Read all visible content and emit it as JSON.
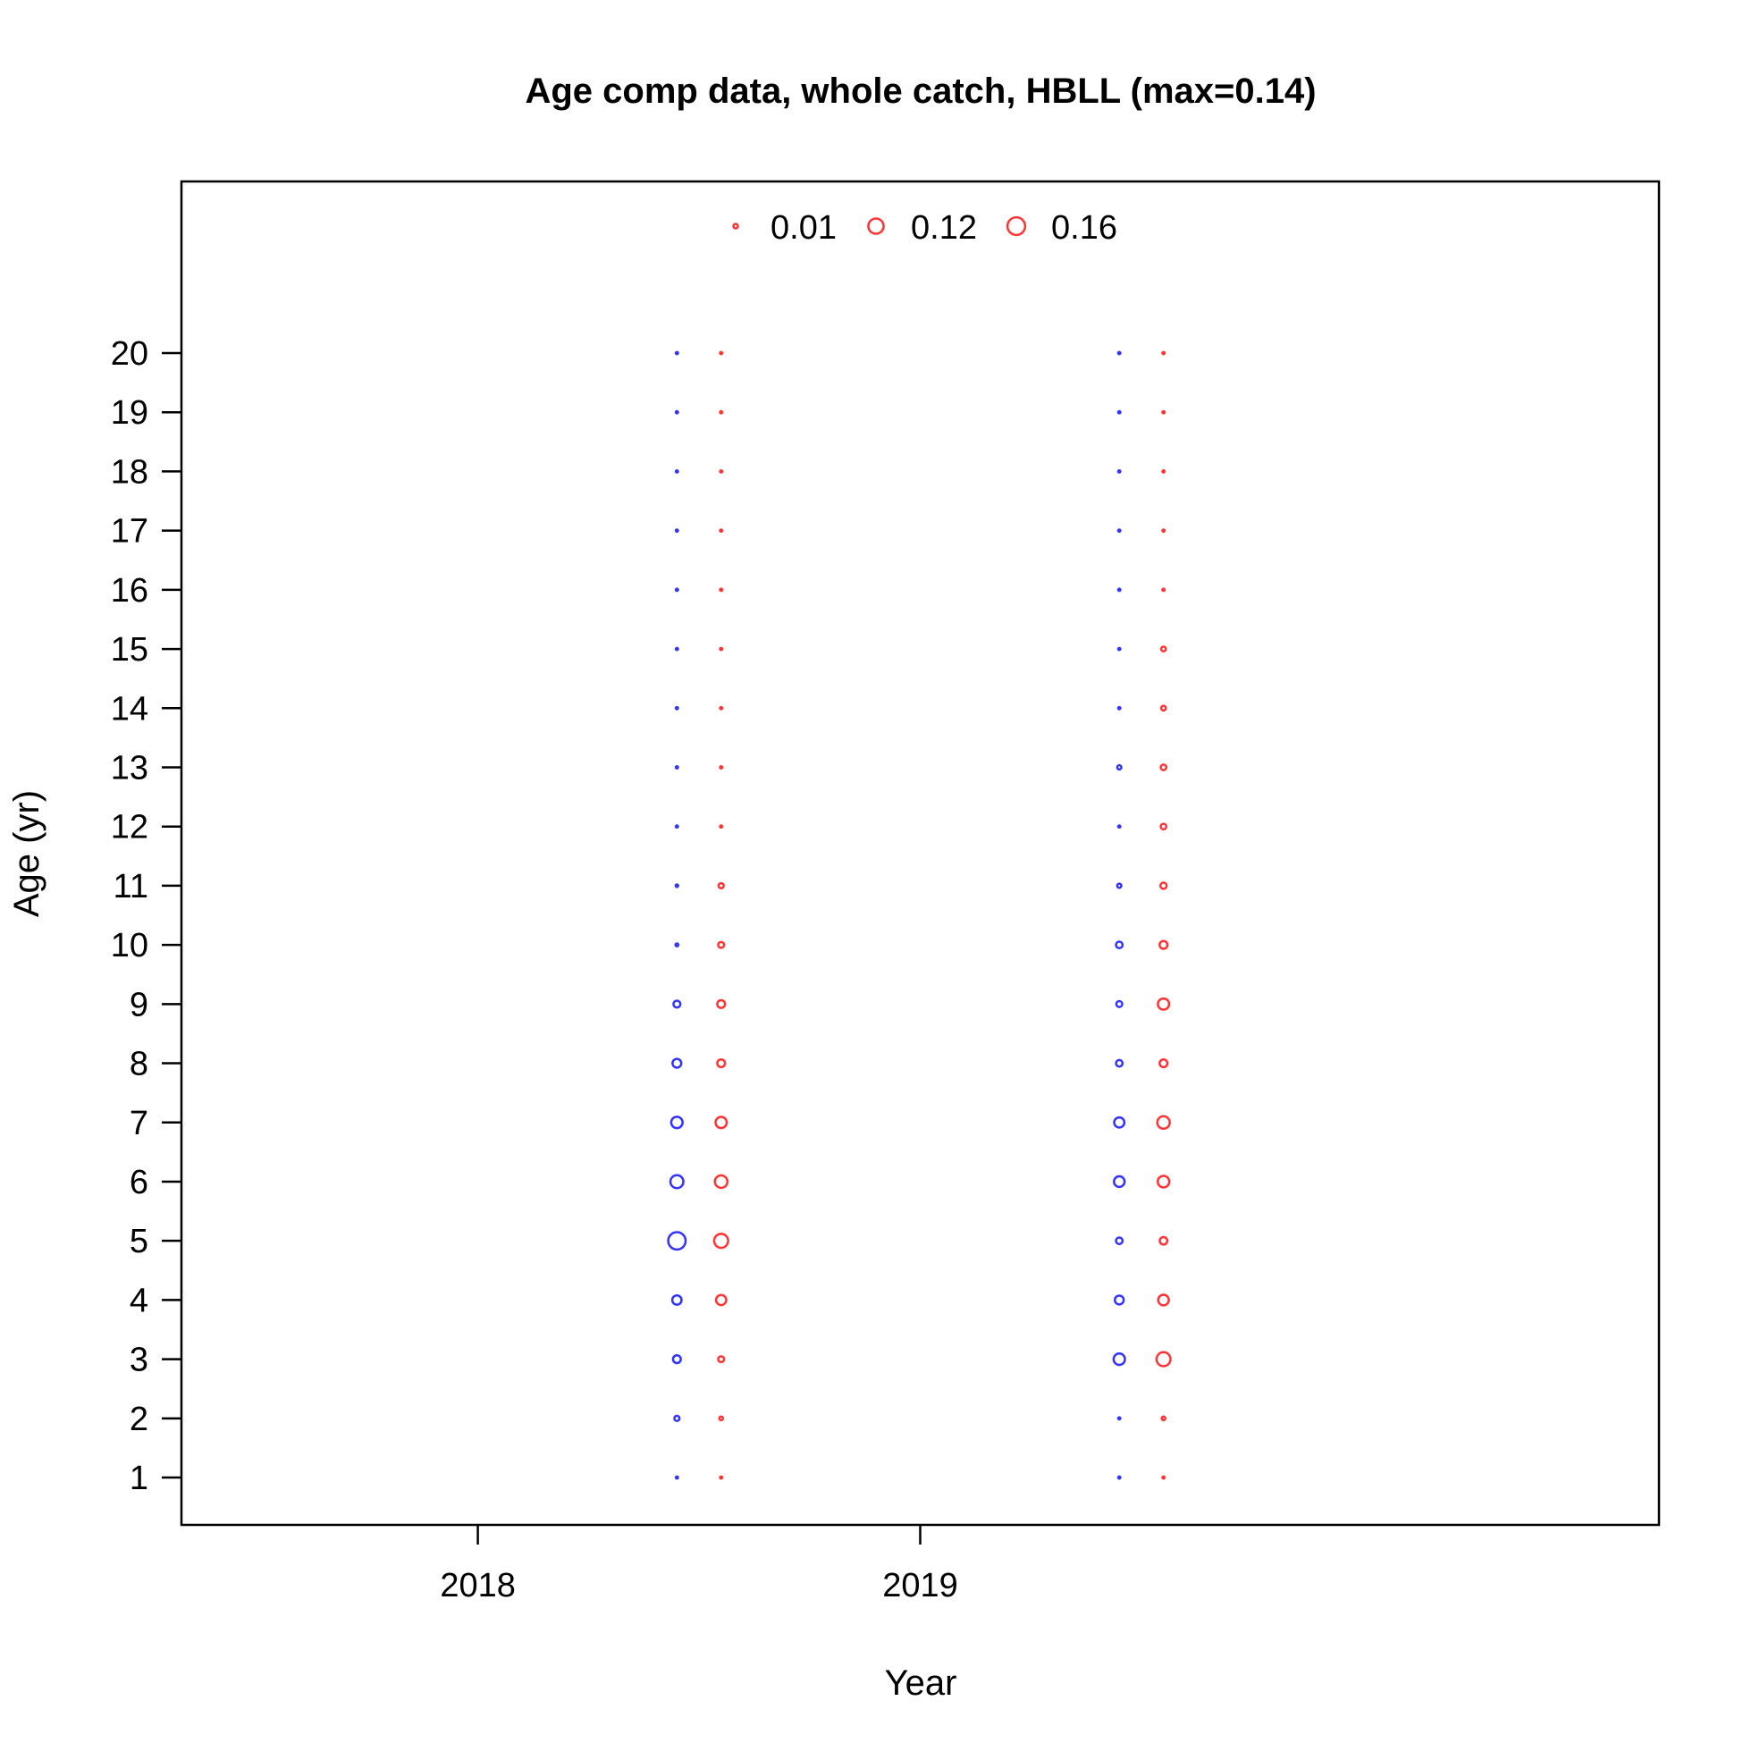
{
  "chart_data": {
    "type": "bubble",
    "title": "Age comp data, whole catch, HBLL (max=0.14)",
    "xlabel": "Year",
    "ylabel": "Age (yr)",
    "x_ticks": [
      2018,
      2019
    ],
    "y_ticks": [
      1,
      2,
      3,
      4,
      5,
      6,
      7,
      8,
      9,
      10,
      11,
      12,
      13,
      14,
      15,
      16,
      17,
      18,
      19,
      20
    ],
    "xlim": [
      2017.33,
      2020.67
    ],
    "ylim": [
      0.2,
      22.9
    ],
    "legend": {
      "placement": "top-center",
      "entries": [
        "0.01",
        "0.12",
        "0.16"
      ],
      "values": [
        0.01,
        0.12,
        0.16
      ],
      "color": "#ff3333"
    },
    "series": [
      {
        "color": "#3333ff",
        "points": [
          {
            "x": 2018.45,
            "ages": [
              1,
              2,
              3,
              4,
              5,
              6,
              7,
              8,
              9,
              10,
              11,
              12,
              13,
              14,
              15,
              16,
              17,
              18,
              19,
              20
            ],
            "values": [
              0.002,
              0.012,
              0.028,
              0.04,
              0.14,
              0.078,
              0.06,
              0.036,
              0.022,
              0.004,
              0.003,
              0.002,
              0.002,
              0.002,
              0.002,
              0.002,
              0.002,
              0.002,
              0.002,
              0.002
            ]
          },
          {
            "x": 2019.45,
            "ages": [
              1,
              2,
              3,
              4,
              5,
              6,
              7,
              8,
              9,
              10,
              11,
              12,
              13,
              14,
              15,
              16,
              17,
              18,
              19,
              20
            ],
            "values": [
              0.002,
              0.002,
              0.06,
              0.036,
              0.02,
              0.052,
              0.048,
              0.02,
              0.016,
              0.02,
              0.008,
              0.002,
              0.008,
              0.002,
              0.002,
              0.002,
              0.002,
              0.002,
              0.002,
              0.002
            ]
          }
        ]
      },
      {
        "color": "#ff3333",
        "points": [
          {
            "x": 2018.55,
            "ages": [
              1,
              2,
              3,
              4,
              5,
              6,
              7,
              8,
              9,
              10,
              11,
              12,
              13,
              14,
              15,
              16,
              17,
              18,
              19,
              20
            ],
            "values": [
              0.001,
              0.006,
              0.016,
              0.048,
              0.09,
              0.072,
              0.058,
              0.028,
              0.028,
              0.016,
              0.012,
              0.002,
              0.002,
              0.002,
              0.002,
              0.002,
              0.002,
              0.002,
              0.002,
              0.002
            ]
          },
          {
            "x": 2019.55,
            "ages": [
              1,
              2,
              3,
              4,
              5,
              6,
              7,
              8,
              9,
              10,
              11,
              12,
              13,
              14,
              15,
              16,
              17,
              18,
              19,
              20
            ],
            "values": [
              0.002,
              0.006,
              0.09,
              0.052,
              0.026,
              0.062,
              0.072,
              0.028,
              0.058,
              0.028,
              0.018,
              0.014,
              0.014,
              0.01,
              0.01,
              0.002,
              0.002,
              0.002,
              0.002,
              0.002
            ]
          }
        ]
      }
    ]
  }
}
